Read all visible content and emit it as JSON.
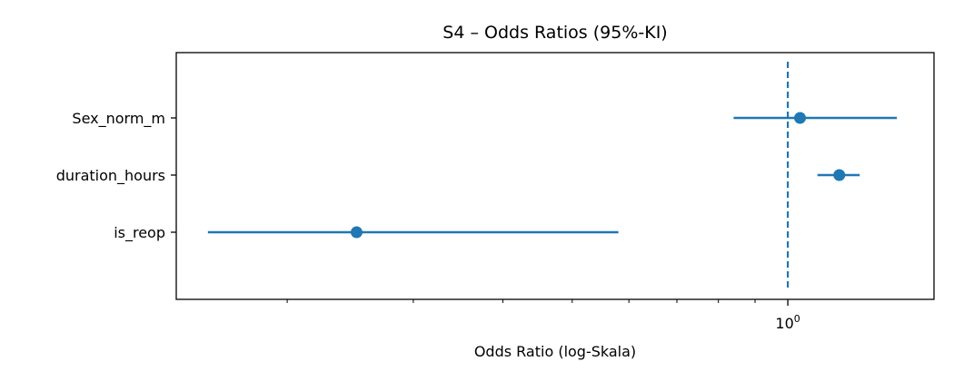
{
  "chart_data": {
    "type": "forest",
    "title": "S4 – Odds Ratios (95%-KI)",
    "xlabel": "Odds Ratio (log-Skala)",
    "ylabel": "",
    "xscale": "log",
    "xlim": [
      0.14,
      1.6
    ],
    "reference_line": 1.0,
    "x_tick_base": "10",
    "x_tick_exp": "0",
    "color": "#1f77b4",
    "grid": false,
    "points": [
      {
        "label": "Sex_norm_m",
        "or": 1.04,
        "ci_low": 0.84,
        "ci_high": 1.42
      },
      {
        "label": "duration_hours",
        "or": 1.18,
        "ci_low": 1.1,
        "ci_high": 1.26
      },
      {
        "label": "is_reop",
        "or": 0.25,
        "ci_low": 0.155,
        "ci_high": 0.58
      }
    ]
  }
}
